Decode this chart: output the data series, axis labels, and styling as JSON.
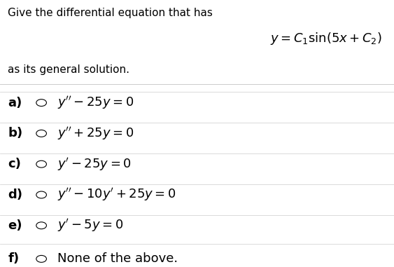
{
  "title_text": "Give the differential equation that has",
  "subtitle_text": "as its general solution.",
  "formula": "$y = C_1 \\sin(5x + C_2)$",
  "options": [
    {
      "label": "a)",
      "math": "$y'' - 25y = 0$"
    },
    {
      "label": "b)",
      "math": "$y'' + 25y = 0$"
    },
    {
      "label": "c)",
      "math": "$y' - 25y = 0$"
    },
    {
      "label": "d)",
      "math": "$y'' - 10y' + 25y = 0$"
    },
    {
      "label": "e)",
      "math": "$y' - 5y = 0$"
    },
    {
      "label": "f)",
      "math": "None of the above."
    }
  ],
  "bg_color": "#ffffff",
  "text_color": "#000000",
  "divider_color": "#cccccc",
  "font_size_title": 11,
  "font_size_formula": 13,
  "font_size_options": 13,
  "font_size_label": 13
}
